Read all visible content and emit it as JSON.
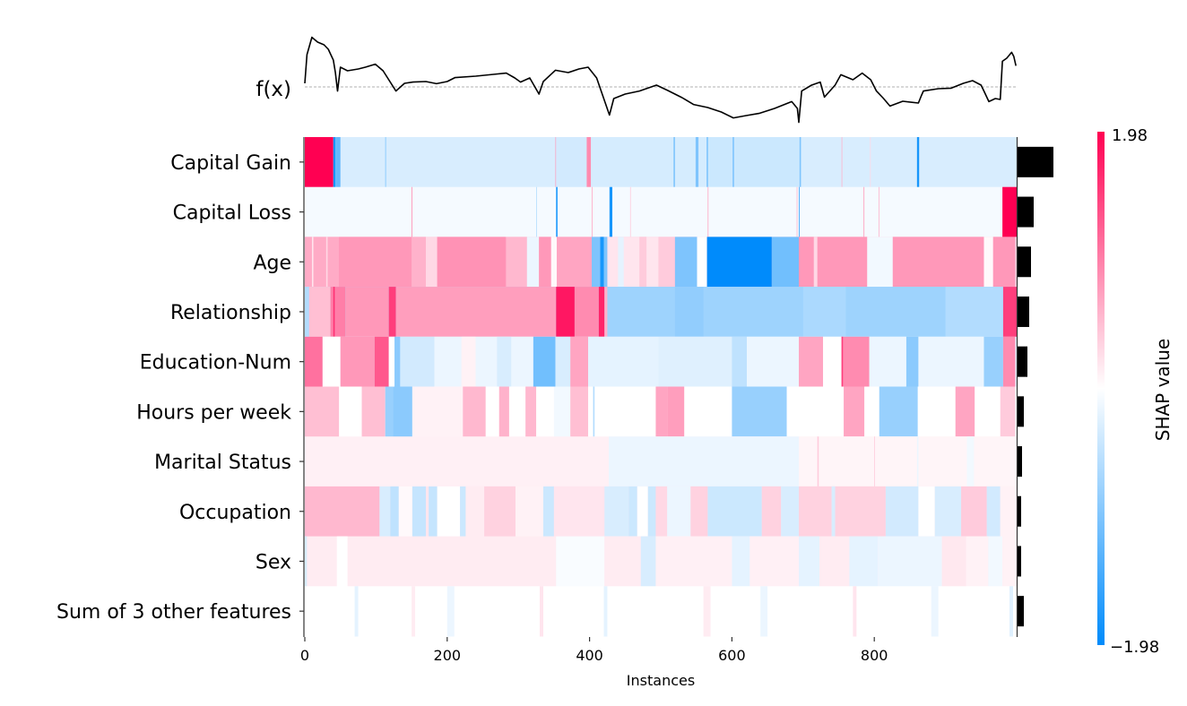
{
  "chart_data": {
    "type": "heatmap",
    "xlabel": "Instances",
    "x_ticks": [
      0,
      200,
      400,
      600,
      800
    ],
    "xlim": [
      0,
      1000
    ],
    "fx_label": "f(x)",
    "colorbar": {
      "label": "SHAP value",
      "max_label": "1.98",
      "min_label": "−1.98",
      "range": [
        -1.98,
        1.98
      ],
      "positive_color": "#ff0052",
      "negative_color": "#008bfb"
    },
    "features": [
      {
        "name": "Capital Gain",
        "importance": 0.4,
        "default": -0.3,
        "segments": [
          [
            0,
            40,
            1.98
          ],
          [
            40,
            43,
            -1.8
          ],
          [
            43,
            50,
            -1.2
          ],
          [
            113,
            114,
            -1.0
          ],
          [
            352,
            353,
            0.8
          ],
          [
            353,
            396,
            -0.35
          ],
          [
            396,
            402,
            0.9
          ],
          [
            402,
            565,
            -0.33
          ],
          [
            518,
            520,
            -1.0
          ],
          [
            549,
            553,
            -1.0
          ],
          [
            565,
            566,
            -1.8
          ],
          [
            566,
            695,
            -0.4
          ],
          [
            601,
            603,
            -1.0
          ],
          [
            695,
            697,
            -1.0
          ],
          [
            754,
            755,
            0.6
          ],
          [
            794,
            795,
            0.3
          ],
          [
            860,
            863,
            -1.8
          ]
        ]
      },
      {
        "name": "Capital Loss",
        "importance": 0.18,
        "default": -0.08,
        "segments": [
          [
            150,
            151,
            0.9
          ],
          [
            325,
            326,
            -0.6
          ],
          [
            353,
            355,
            -1.8
          ],
          [
            403,
            404,
            0.7
          ],
          [
            428,
            432,
            -1.8
          ],
          [
            457,
            458,
            0.4
          ],
          [
            566,
            567,
            0.7
          ],
          [
            691,
            692,
            0.6
          ],
          [
            694,
            695,
            -1.6
          ],
          [
            785,
            786,
            0.8
          ],
          [
            806,
            807,
            0.6
          ],
          [
            980,
            1000,
            1.98
          ]
        ]
      },
      {
        "name": "Age",
        "importance": 0.15,
        "default": 0.7,
        "segments": [
          [
            0,
            48,
            0.65
          ],
          [
            10,
            12,
            0.2
          ],
          [
            30,
            32,
            0.3
          ],
          [
            48,
            150,
            0.8
          ],
          [
            150,
            170,
            0.6
          ],
          [
            170,
            186,
            0.3
          ],
          [
            186,
            282,
            0.85
          ],
          [
            283,
            312,
            0.55
          ],
          [
            312,
            329,
            -0.15
          ],
          [
            329,
            346,
            0.8
          ],
          [
            346,
            354,
            0.05
          ],
          [
            354,
            403,
            0.7
          ],
          [
            403,
            425,
            -1.0
          ],
          [
            415,
            420,
            -1.8
          ],
          [
            425,
            497,
            0.2
          ],
          [
            440,
            448,
            -0.2
          ],
          [
            470,
            480,
            0.4
          ],
          [
            497,
            520,
            0.4
          ],
          [
            520,
            551,
            -1.0
          ],
          [
            551,
            565,
            0.0
          ],
          [
            565,
            656,
            -1.98
          ],
          [
            656,
            694,
            -1.1
          ],
          [
            694,
            790,
            0.8
          ],
          [
            715,
            720,
            0.3
          ],
          [
            790,
            826,
            -0.1
          ],
          [
            826,
            954,
            0.8
          ],
          [
            954,
            967,
            0.05
          ],
          [
            967,
            998,
            0.8
          ],
          [
            998,
            1000,
            0.3
          ]
        ]
      },
      {
        "name": "Relationship",
        "importance": 0.13,
        "default": -0.75,
        "segments": [
          [
            0,
            6,
            -0.6
          ],
          [
            6,
            36,
            0.5
          ],
          [
            36,
            57,
            1.0
          ],
          [
            40,
            42,
            1.6
          ],
          [
            57,
            118,
            0.8
          ],
          [
            118,
            128,
            1.5
          ],
          [
            128,
            353,
            0.75
          ],
          [
            353,
            379,
            1.8
          ],
          [
            379,
            413,
            0.9
          ],
          [
            413,
            421,
            1.7
          ],
          [
            421,
            425,
            0.6
          ],
          [
            425,
            981,
            -0.75
          ],
          [
            520,
            560,
            -0.85
          ],
          [
            700,
            760,
            -0.65
          ],
          [
            900,
            981,
            -0.6
          ],
          [
            981,
            1000,
            1.5
          ]
        ]
      },
      {
        "name": "Education-Num",
        "importance": 0.11,
        "default": -0.2,
        "segments": [
          [
            0,
            25,
            1.1
          ],
          [
            25,
            50,
            0.0
          ],
          [
            50,
            98,
            0.8
          ],
          [
            98,
            118,
            1.3
          ],
          [
            118,
            126,
            0.0
          ],
          [
            126,
            134,
            -0.9
          ],
          [
            134,
            182,
            -0.35
          ],
          [
            182,
            321,
            -0.15
          ],
          [
            220,
            240,
            0.1
          ],
          [
            270,
            290,
            -0.3
          ],
          [
            321,
            352,
            -1.1
          ],
          [
            352,
            373,
            -0.3
          ],
          [
            373,
            398,
            0.7
          ],
          [
            398,
            497,
            -0.2
          ],
          [
            497,
            600,
            -0.25
          ],
          [
            600,
            621,
            -0.5
          ],
          [
            621,
            694,
            -0.15
          ],
          [
            694,
            728,
            0.7
          ],
          [
            728,
            754,
            0.0
          ],
          [
            754,
            793,
            0.9
          ],
          [
            754,
            756,
            1.5
          ],
          [
            793,
            845,
            -0.15
          ],
          [
            845,
            862,
            -0.9
          ],
          [
            862,
            954,
            -0.15
          ],
          [
            954,
            981,
            -0.8
          ],
          [
            981,
            998,
            0.9
          ]
        ]
      },
      {
        "name": "Hours per week",
        "importance": 0.07,
        "default": 0.0,
        "segments": [
          [
            0,
            48,
            0.5
          ],
          [
            80,
            113,
            0.5
          ],
          [
            113,
            124,
            -0.8
          ],
          [
            124,
            151,
            -0.9
          ],
          [
            151,
            222,
            0.1
          ],
          [
            222,
            254,
            0.55
          ],
          [
            273,
            287,
            0.6
          ],
          [
            310,
            325,
            0.55
          ],
          [
            350,
            373,
            -0.1
          ],
          [
            373,
            398,
            0.5
          ],
          [
            405,
            407,
            -0.6
          ],
          [
            493,
            509,
            0.7
          ],
          [
            509,
            533,
            0.75
          ],
          [
            600,
            677,
            -0.8
          ],
          [
            757,
            786,
            0.7
          ],
          [
            807,
            861,
            -0.8
          ],
          [
            914,
            941,
            0.7
          ],
          [
            977,
            998,
            0.4
          ]
        ]
      },
      {
        "name": "Marital Status",
        "importance": 0.05,
        "default": 0.12,
        "segments": [
          [
            427,
            694,
            -0.15
          ],
          [
            694,
            1000,
            0.08
          ],
          [
            720,
            722,
            0.4
          ],
          [
            800,
            801,
            0.4
          ],
          [
            860,
            862,
            -0.15
          ],
          [
            930,
            940,
            -0.1
          ]
        ]
      },
      {
        "name": "Occupation",
        "importance": 0.04,
        "default": 0.2,
        "segments": [
          [
            0,
            105,
            0.55
          ],
          [
            105,
            120,
            -0.3
          ],
          [
            120,
            132,
            -0.5
          ],
          [
            132,
            151,
            0.05
          ],
          [
            151,
            170,
            -0.45
          ],
          [
            174,
            186,
            -0.45
          ],
          [
            186,
            218,
            0.0
          ],
          [
            218,
            226,
            -0.4
          ],
          [
            226,
            252,
            0.15
          ],
          [
            252,
            296,
            0.35
          ],
          [
            296,
            335,
            0.1
          ],
          [
            335,
            350,
            -0.4
          ],
          [
            350,
            421,
            0.2
          ],
          [
            421,
            455,
            -0.3
          ],
          [
            455,
            467,
            -0.4
          ],
          [
            467,
            482,
            0.0
          ],
          [
            482,
            493,
            -0.4
          ],
          [
            493,
            509,
            0.3
          ],
          [
            509,
            542,
            -0.15
          ],
          [
            542,
            566,
            0.35
          ],
          [
            566,
            642,
            -0.4
          ],
          [
            642,
            669,
            0.35
          ],
          [
            669,
            694,
            -0.3
          ],
          [
            694,
            816,
            0.35
          ],
          [
            740,
            745,
            -0.3
          ],
          [
            816,
            862,
            -0.35
          ],
          [
            862,
            885,
            0.0
          ],
          [
            885,
            922,
            -0.3
          ],
          [
            922,
            958,
            0.4
          ],
          [
            958,
            977,
            -0.35
          ],
          [
            977,
            1000,
            0.1
          ]
        ]
      },
      {
        "name": "Sex",
        "importance": 0.04,
        "default": 0.15,
        "segments": [
          [
            0,
            3,
            -0.3
          ],
          [
            45,
            60,
            0.0
          ],
          [
            353,
            421,
            -0.05
          ],
          [
            421,
            472,
            0.15
          ],
          [
            472,
            493,
            -0.3
          ],
          [
            493,
            694,
            0.12
          ],
          [
            600,
            625,
            -0.2
          ],
          [
            694,
            723,
            -0.2
          ],
          [
            723,
            765,
            0.15
          ],
          [
            765,
            805,
            -0.2
          ],
          [
            805,
            895,
            -0.15
          ],
          [
            895,
            929,
            0.18
          ],
          [
            929,
            960,
            0.1
          ],
          [
            960,
            980,
            -0.1
          ],
          [
            980,
            1000,
            0.1
          ]
        ]
      },
      {
        "name": "Sum of 3 other features",
        "importance": 0.07,
        "default": 0.0,
        "segments": [
          [
            70,
            75,
            -0.2
          ],
          [
            150,
            155,
            0.15
          ],
          [
            200,
            210,
            -0.15
          ],
          [
            330,
            335,
            0.2
          ],
          [
            420,
            425,
            -0.2
          ],
          [
            560,
            570,
            0.15
          ],
          [
            640,
            650,
            -0.15
          ],
          [
            770,
            775,
            0.2
          ],
          [
            880,
            890,
            -0.15
          ],
          [
            990,
            995,
            -0.25
          ]
        ]
      }
    ],
    "fx": {
      "baseline": 0,
      "x": [
        0,
        3,
        10,
        18,
        27,
        33,
        40,
        43,
        46,
        50,
        60,
        75,
        85,
        99,
        110,
        128,
        140,
        152,
        170,
        185,
        200,
        211,
        240,
        265,
        283,
        295,
        303,
        316,
        329,
        335,
        352,
        370,
        385,
        398,
        410,
        428,
        434,
        450,
        470,
        494,
        510,
        530,
        546,
        566,
        585,
        602,
        620,
        638,
        660,
        684,
        692,
        694,
        698,
        712,
        724,
        730,
        745,
        753,
        770,
        783,
        795,
        803,
        812,
        822,
        840,
        862,
        866,
        869,
        890,
        908,
        925,
        938,
        950,
        954,
        961,
        970,
        977,
        980,
        986,
        993,
        996,
        999
      ],
      "y": [
        0.2,
        1.8,
        2.77,
        2.5,
        2.35,
        2.1,
        1.5,
        0.8,
        -0.23,
        1.1,
        0.9,
        1.0,
        1.1,
        1.27,
        0.9,
        -0.23,
        0.2,
        0.27,
        0.3,
        0.18,
        0.3,
        0.52,
        0.6,
        0.7,
        0.77,
        0.5,
        0.27,
        0.5,
        -0.4,
        0.3,
        0.93,
        0.8,
        1.0,
        1.1,
        0.5,
        -1.57,
        -0.65,
        -0.4,
        -0.23,
        0.1,
        -0.2,
        -0.6,
        -0.98,
        -1.15,
        -1.4,
        -1.73,
        -1.6,
        -1.48,
        -1.2,
        -0.82,
        -1.2,
        -1.98,
        -0.23,
        0.1,
        0.27,
        -0.57,
        0.1,
        0.68,
        0.4,
        0.77,
        0.4,
        -0.23,
        -0.6,
        -1.07,
        -0.8,
        -0.9,
        -0.5,
        -0.23,
        -0.1,
        -0.07,
        0.2,
        0.35,
        0.1,
        -0.23,
        -0.82,
        -0.65,
        -0.7,
        1.43,
        1.6,
        1.93,
        1.7,
        1.18
      ]
    }
  }
}
